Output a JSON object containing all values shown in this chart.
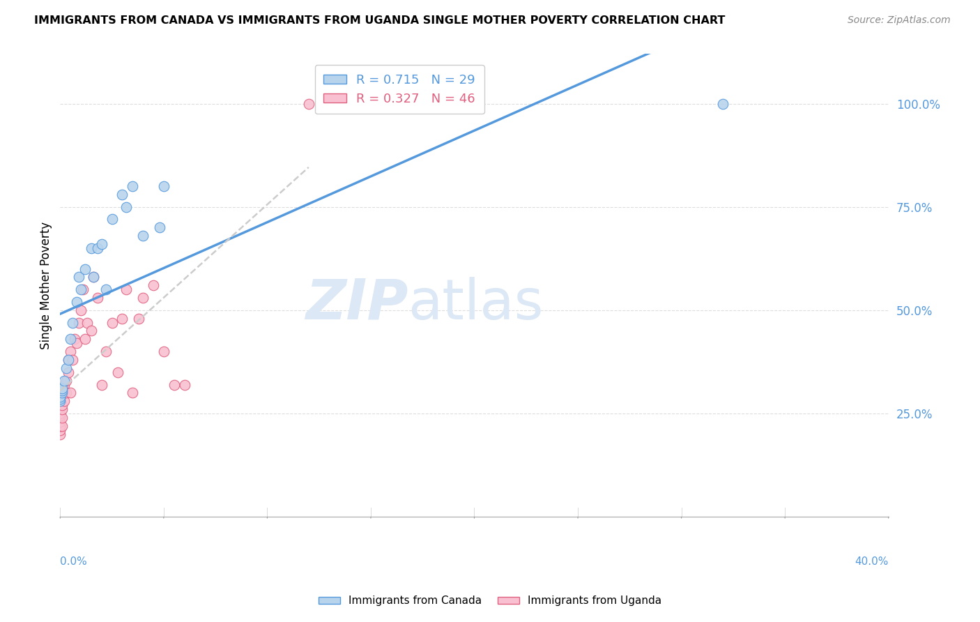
{
  "title": "IMMIGRANTS FROM CANADA VS IMMIGRANTS FROM UGANDA SINGLE MOTHER POVERTY CORRELATION CHART",
  "source": "Source: ZipAtlas.com",
  "ylabel": "Single Mother Poverty",
  "ytick_labels": [
    "25.0%",
    "50.0%",
    "75.0%",
    "100.0%"
  ],
  "ytick_values": [
    0.25,
    0.5,
    0.75,
    1.0
  ],
  "R_canada": 0.715,
  "N_canada": 29,
  "R_uganda": 0.327,
  "N_uganda": 46,
  "color_canada": "#b8d4ec",
  "color_canada_line": "#5599dd",
  "color_uganda": "#f8c0d0",
  "color_uganda_line": "#e06080",
  "color_trendline_canada": "#5599dd",
  "color_trendline_uganda": "#cccccc",
  "watermark_zip": "ZIP",
  "watermark_atlas": "atlas",
  "watermark_color": "#dce8f5",
  "canada_x": [
    0.0,
    0.0,
    0.0,
    0.001,
    0.001,
    0.001,
    0.002,
    0.003,
    0.004,
    0.005,
    0.006,
    0.008,
    0.009,
    0.01,
    0.012,
    0.015,
    0.016,
    0.018,
    0.02,
    0.022,
    0.025,
    0.03,
    0.032,
    0.035,
    0.04,
    0.048,
    0.05,
    0.2,
    0.32
  ],
  "canada_y": [
    0.28,
    0.285,
    0.29,
    0.3,
    0.305,
    0.31,
    0.33,
    0.36,
    0.38,
    0.43,
    0.47,
    0.52,
    0.58,
    0.55,
    0.6,
    0.65,
    0.58,
    0.65,
    0.66,
    0.55,
    0.72,
    0.78,
    0.75,
    0.8,
    0.68,
    0.7,
    0.8,
    1.0,
    1.0
  ],
  "uganda_x": [
    0.0,
    0.0,
    0.0,
    0.0,
    0.0,
    0.0,
    0.0,
    0.0,
    0.001,
    0.001,
    0.001,
    0.001,
    0.002,
    0.002,
    0.002,
    0.003,
    0.003,
    0.004,
    0.004,
    0.005,
    0.005,
    0.006,
    0.007,
    0.008,
    0.009,
    0.01,
    0.011,
    0.012,
    0.013,
    0.015,
    0.016,
    0.018,
    0.02,
    0.022,
    0.025,
    0.028,
    0.03,
    0.032,
    0.035,
    0.038,
    0.04,
    0.045,
    0.05,
    0.055,
    0.06,
    0.12
  ],
  "uganda_y": [
    0.2,
    0.21,
    0.22,
    0.22,
    0.23,
    0.24,
    0.245,
    0.25,
    0.22,
    0.24,
    0.26,
    0.27,
    0.28,
    0.3,
    0.32,
    0.3,
    0.33,
    0.35,
    0.38,
    0.3,
    0.4,
    0.38,
    0.43,
    0.42,
    0.47,
    0.5,
    0.55,
    0.43,
    0.47,
    0.45,
    0.58,
    0.53,
    0.32,
    0.4,
    0.47,
    0.35,
    0.48,
    0.55,
    0.3,
    0.48,
    0.53,
    0.56,
    0.4,
    0.32,
    0.32,
    1.0
  ],
  "xmin": 0.0,
  "xmax": 0.4,
  "ymin": 0.0,
  "ymax": 1.12,
  "xlim_display_left": "0.0%",
  "xlim_display_right": "40.0%"
}
